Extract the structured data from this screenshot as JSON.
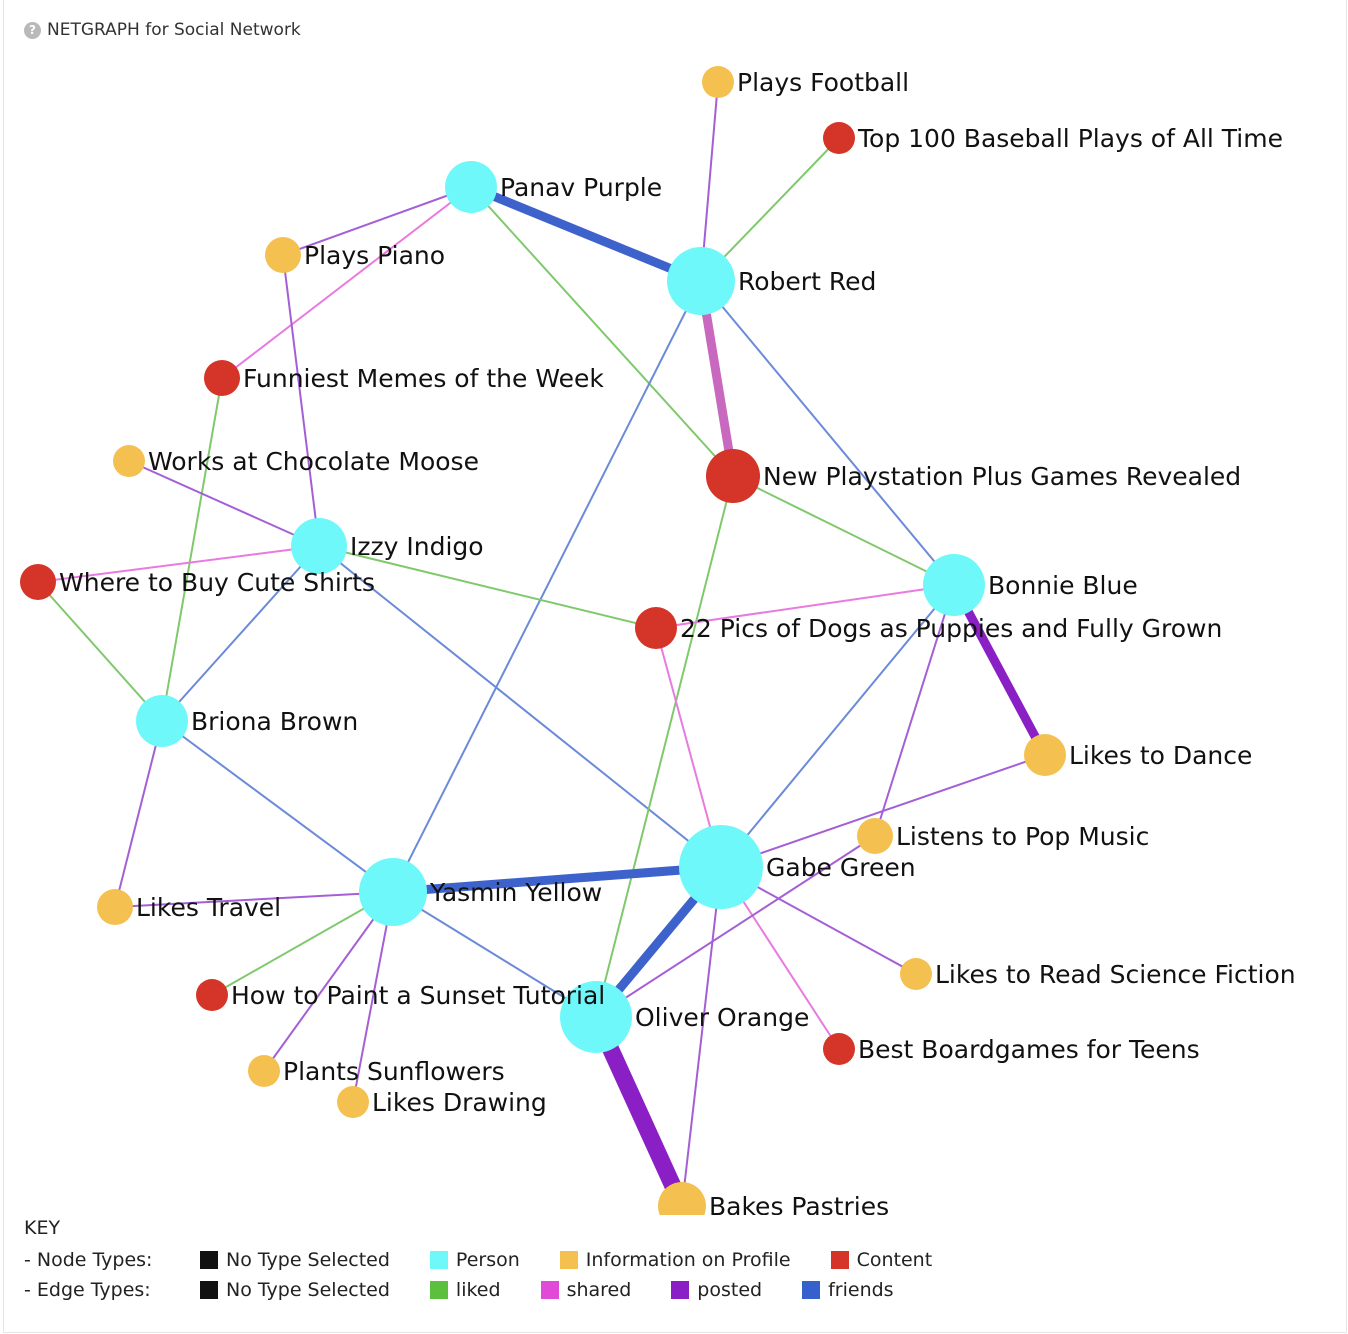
{
  "window": {
    "title": "NETGRAPH for Social Network",
    "help_icon": "question-circle-icon"
  },
  "colors": {
    "person": "#6ff8fa",
    "info": "#f4c150",
    "content": "#d53428",
    "liked": "#6ac560",
    "shared": "#e870d8",
    "posted": "#9342c8",
    "friends": "#4468cc",
    "none": "#111111"
  },
  "nodes": [
    {
      "id": "panav",
      "label": "Panav Purple",
      "type": "person"
    },
    {
      "id": "robert",
      "label": "Robert Red",
      "type": "person"
    },
    {
      "id": "izzy",
      "label": "Izzy Indigo",
      "type": "person"
    },
    {
      "id": "bonnie",
      "label": "Bonnie Blue",
      "type": "person"
    },
    {
      "id": "briona",
      "label": "Briona Brown",
      "type": "person"
    },
    {
      "id": "yasmin",
      "label": "Yasmin Yellow",
      "type": "person"
    },
    {
      "id": "gabe",
      "label": "Gabe Green",
      "type": "person"
    },
    {
      "id": "oliver",
      "label": "Oliver Orange",
      "type": "person"
    },
    {
      "id": "football",
      "label": "Plays Football",
      "type": "info"
    },
    {
      "id": "piano",
      "label": "Plays Piano",
      "type": "info"
    },
    {
      "id": "choc",
      "label": "Works at Chocolate Moose",
      "type": "info"
    },
    {
      "id": "dance",
      "label": "Likes to Dance",
      "type": "info"
    },
    {
      "id": "pop",
      "label": "Listens to Pop Music",
      "type": "info"
    },
    {
      "id": "scifi",
      "label": "Likes to Read Science Fiction",
      "type": "info"
    },
    {
      "id": "travel",
      "label": "Likes Travel",
      "type": "info"
    },
    {
      "id": "sunflowers",
      "label": "Plants Sunflowers",
      "type": "info"
    },
    {
      "id": "drawing",
      "label": "Likes Drawing",
      "type": "info"
    },
    {
      "id": "pastries",
      "label": "Bakes Pastries",
      "type": "info"
    },
    {
      "id": "baseball",
      "label": "Top 100 Baseball Plays of All Time",
      "type": "content"
    },
    {
      "id": "memes",
      "label": "Funniest Memes of the Week",
      "type": "content"
    },
    {
      "id": "playstation",
      "label": "New Playstation Plus Games Revealed",
      "type": "content"
    },
    {
      "id": "shirts",
      "label": "Where to Buy Cute Shirts",
      "type": "content"
    },
    {
      "id": "dogs",
      "label": "22 Pics of Dogs as Puppies and Fully Grown",
      "type": "content"
    },
    {
      "id": "sunset",
      "label": "How to Paint a Sunset Tutorial",
      "type": "content"
    },
    {
      "id": "boardgames",
      "label": "Best Boardgames for Teens",
      "type": "content"
    }
  ],
  "edges": [
    {
      "source": "robert",
      "target": "football",
      "type": "posted"
    },
    {
      "source": "robert",
      "target": "baseball",
      "type": "liked"
    },
    {
      "source": "panav",
      "target": "robert",
      "type": "friends",
      "weight": 3
    },
    {
      "source": "panav",
      "target": "piano",
      "type": "posted"
    },
    {
      "source": "panav",
      "target": "memes",
      "type": "shared"
    },
    {
      "source": "panav",
      "target": "playstation",
      "type": "liked"
    },
    {
      "source": "robert",
      "target": "playstation",
      "type": "shared",
      "weight": 3
    },
    {
      "source": "robert",
      "target": "bonnie",
      "type": "friends"
    },
    {
      "source": "robert",
      "target": "yasmin",
      "type": "friends"
    },
    {
      "source": "piano",
      "target": "izzy",
      "type": "posted"
    },
    {
      "source": "memes",
      "target": "briona",
      "type": "liked"
    },
    {
      "source": "choc",
      "target": "izzy",
      "type": "posted"
    },
    {
      "source": "izzy",
      "target": "shirts",
      "type": "shared"
    },
    {
      "source": "izzy",
      "target": "dogs",
      "type": "liked"
    },
    {
      "source": "izzy",
      "target": "briona",
      "type": "friends"
    },
    {
      "source": "izzy",
      "target": "gabe",
      "type": "friends"
    },
    {
      "source": "shirts",
      "target": "briona",
      "type": "liked"
    },
    {
      "source": "playstation",
      "target": "bonnie",
      "type": "liked"
    },
    {
      "source": "playstation",
      "target": "oliver",
      "type": "liked"
    },
    {
      "source": "dogs",
      "target": "bonnie",
      "type": "shared"
    },
    {
      "source": "dogs",
      "target": "gabe",
      "type": "shared"
    },
    {
      "source": "bonnie",
      "target": "dance",
      "type": "posted",
      "weight": 3
    },
    {
      "source": "bonnie",
      "target": "gabe",
      "type": "friends"
    },
    {
      "source": "bonnie",
      "target": "pop",
      "type": "posted"
    },
    {
      "source": "dance",
      "target": "gabe",
      "type": "posted"
    },
    {
      "source": "briona",
      "target": "yasmin",
      "type": "friends"
    },
    {
      "source": "briona",
      "target": "travel",
      "type": "posted"
    },
    {
      "source": "yasmin",
      "target": "gabe",
      "type": "friends",
      "weight": 3
    },
    {
      "source": "yasmin",
      "target": "travel",
      "type": "posted"
    },
    {
      "source": "yasmin",
      "target": "sunset",
      "type": "liked"
    },
    {
      "source": "yasmin",
      "target": "sunflowers",
      "type": "posted"
    },
    {
      "source": "yasmin",
      "target": "drawing",
      "type": "posted"
    },
    {
      "source": "yasmin",
      "target": "oliver",
      "type": "friends"
    },
    {
      "source": "gabe",
      "target": "oliver",
      "type": "friends",
      "weight": 3
    },
    {
      "source": "gabe",
      "target": "scifi",
      "type": "posted"
    },
    {
      "source": "gabe",
      "target": "boardgames",
      "type": "shared"
    },
    {
      "source": "gabe",
      "target": "pastries",
      "type": "posted"
    },
    {
      "source": "pop",
      "target": "oliver",
      "type": "posted"
    },
    {
      "source": "oliver",
      "target": "pastries",
      "type": "posted",
      "weight": 5
    }
  ],
  "key": {
    "title": "KEY",
    "node_types_label": "- Node Types:",
    "edge_types_label": "- Edge Types:",
    "node_types": [
      {
        "label": "No Type Selected",
        "color": "#111111"
      },
      {
        "label": "Person",
        "color": "#6ff8fa"
      },
      {
        "label": "Information on Profile",
        "color": "#f4c150"
      },
      {
        "label": "Content",
        "color": "#d53428"
      }
    ],
    "edge_types": [
      {
        "label": "No Type Selected",
        "color": "#111111"
      },
      {
        "label": "liked",
        "color": "#5cbf3e"
      },
      {
        "label": "shared",
        "color": "#e04ad6"
      },
      {
        "label": "posted",
        "color": "#8a1fc6"
      },
      {
        "label": "friends",
        "color": "#3660cc"
      }
    ]
  }
}
